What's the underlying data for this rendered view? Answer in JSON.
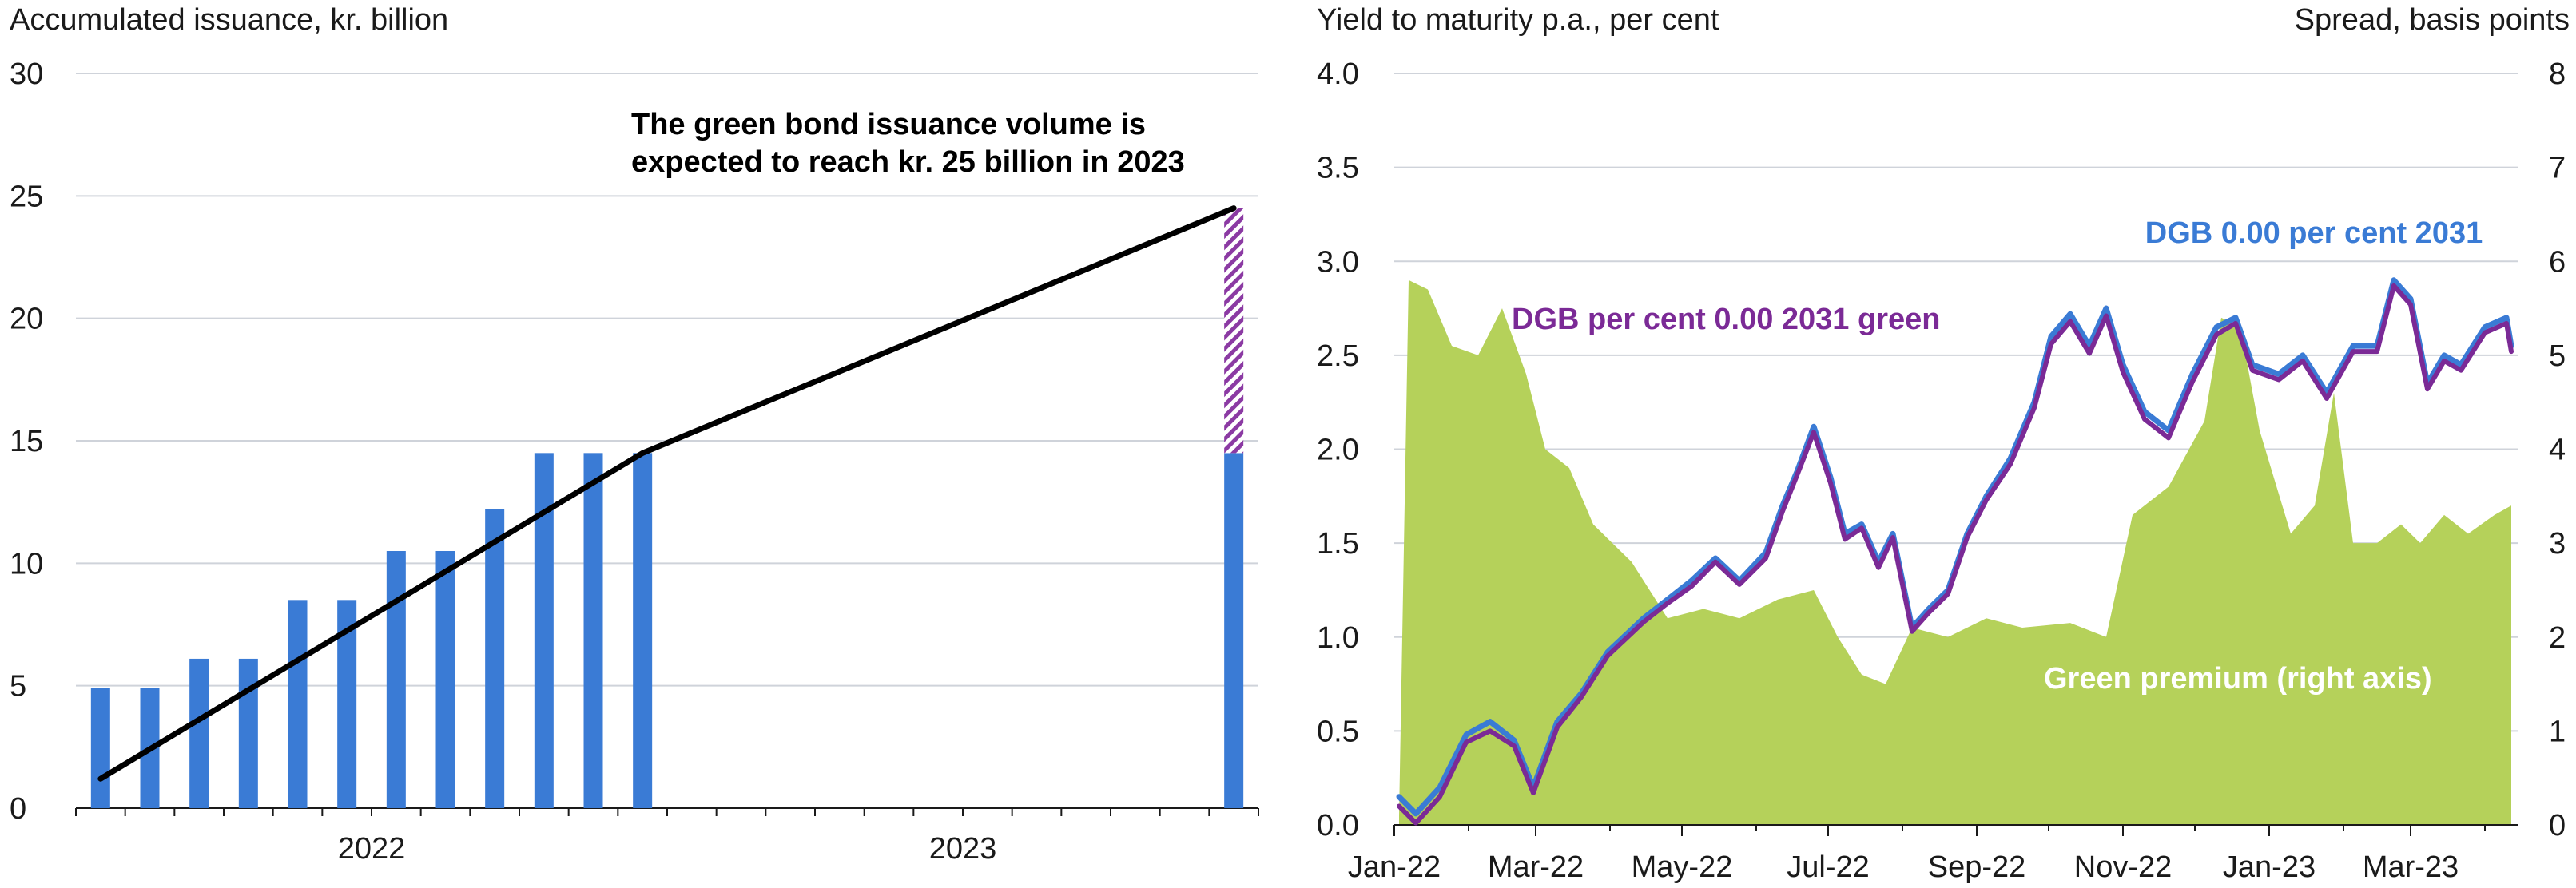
{
  "colors": {
    "bar": "#3a7bd5",
    "projection_hatch": "#8b3aa3",
    "trend_line": "#000000",
    "dgb_line": "#3a7bd5",
    "dgb_green_line": "#7b2a96",
    "green_premium_fill": "#b5d15a",
    "grid": "#cfd3da",
    "label_blue": "#3a7bd5",
    "label_purple": "#7b2a96",
    "label_white": "#ffffff"
  },
  "chart_data": [
    {
      "type": "bar",
      "title": "",
      "ylabel": "Accumulated issuance, kr. billion",
      "xlabel": "",
      "ylim": [
        0,
        30
      ],
      "yticks": [
        0,
        5,
        10,
        15,
        20,
        25,
        30
      ],
      "x_year_labels": [
        "2022",
        "2023"
      ],
      "categories": [
        "Jan-22",
        "Feb-22",
        "Mar-22",
        "Apr-22",
        "May-22",
        "Jun-22",
        "Jul-22",
        "Aug-22",
        "Sep-22",
        "Oct-22",
        "Nov-22",
        "Dec-22",
        "Dec-23"
      ],
      "values": [
        4.9,
        4.9,
        6.1,
        6.1,
        8.5,
        8.5,
        10.5,
        10.5,
        12.2,
        14.5,
        14.5,
        14.5,
        14.5
      ],
      "projection": {
        "category": "Dec-23",
        "from": 14.5,
        "to": 24.5
      },
      "trend_line": [
        {
          "x": "Jan-22",
          "y": 1.2
        },
        {
          "x": "Dec-22",
          "y": 14.5
        },
        {
          "x": "Dec-23",
          "y": 24.5
        }
      ],
      "annotation": "The green bond issuance volume is expected to reach kr. 25 billion in 2023"
    },
    {
      "type": "line",
      "title": "",
      "ylabel_left": "Yield to maturity p.a., per cent",
      "ylabel_right": "Spread, basis points",
      "ylim_left": [
        0,
        4
      ],
      "ylim_right": [
        0,
        8
      ],
      "yticks_left": [
        "0.0",
        "0.5",
        "1.0",
        "1.5",
        "2.0",
        "2.5",
        "3.0",
        "3.5",
        "4.0"
      ],
      "yticks_right": [
        "0",
        "1",
        "2",
        "3",
        "4",
        "5",
        "6",
        "7",
        "8"
      ],
      "x_tick_labels": [
        "Jan-22",
        "Mar-22",
        "May-22",
        "Jul-22",
        "Sep-22",
        "Nov-22",
        "Jan-23",
        "Mar-23"
      ],
      "x_range": [
        "2022-01-01",
        "2023-04-15"
      ],
      "series": [
        {
          "name": "DGB 0.00 per cent 2031",
          "axis": "left",
          "points": [
            [
              "2022-01-03",
              0.15
            ],
            [
              "2022-01-10",
              0.06
            ],
            [
              "2022-01-20",
              0.2
            ],
            [
              "2022-01-31",
              0.48
            ],
            [
              "2022-02-10",
              0.55
            ],
            [
              "2022-02-20",
              0.45
            ],
            [
              "2022-02-28",
              0.2
            ],
            [
              "2022-03-10",
              0.55
            ],
            [
              "2022-03-20",
              0.7
            ],
            [
              "2022-03-31",
              0.92
            ],
            [
              "2022-04-15",
              1.1
            ],
            [
              "2022-04-25",
              1.2
            ],
            [
              "2022-05-05",
              1.3
            ],
            [
              "2022-05-15",
              1.42
            ],
            [
              "2022-05-25",
              1.3
            ],
            [
              "2022-06-05",
              1.45
            ],
            [
              "2022-06-12",
              1.7
            ],
            [
              "2022-06-18",
              1.88
            ],
            [
              "2022-06-25",
              2.12
            ],
            [
              "2022-07-02",
              1.85
            ],
            [
              "2022-07-08",
              1.55
            ],
            [
              "2022-07-15",
              1.6
            ],
            [
              "2022-07-22",
              1.4
            ],
            [
              "2022-07-28",
              1.55
            ],
            [
              "2022-08-05",
              1.05
            ],
            [
              "2022-08-12",
              1.15
            ],
            [
              "2022-08-20",
              1.25
            ],
            [
              "2022-08-28",
              1.55
            ],
            [
              "2022-09-05",
              1.75
            ],
            [
              "2022-09-15",
              1.95
            ],
            [
              "2022-09-25",
              2.25
            ],
            [
              "2022-10-02",
              2.6
            ],
            [
              "2022-10-10",
              2.72
            ],
            [
              "2022-10-18",
              2.55
            ],
            [
              "2022-10-25",
              2.75
            ],
            [
              "2022-11-01",
              2.45
            ],
            [
              "2022-11-10",
              2.2
            ],
            [
              "2022-11-20",
              2.1
            ],
            [
              "2022-11-30",
              2.4
            ],
            [
              "2022-12-10",
              2.65
            ],
            [
              "2022-12-18",
              2.7
            ],
            [
              "2022-12-25",
              2.45
            ],
            [
              "2023-01-05",
              2.4
            ],
            [
              "2023-01-15",
              2.5
            ],
            [
              "2023-01-25",
              2.3
            ],
            [
              "2023-02-05",
              2.55
            ],
            [
              "2023-02-15",
              2.55
            ],
            [
              "2023-02-22",
              2.9
            ],
            [
              "2023-03-01",
              2.8
            ],
            [
              "2023-03-08",
              2.35
            ],
            [
              "2023-03-15",
              2.5
            ],
            [
              "2023-03-22",
              2.45
            ],
            [
              "2023-04-01",
              2.65
            ],
            [
              "2023-04-10",
              2.7
            ],
            [
              "2023-04-12",
              2.55
            ]
          ]
        },
        {
          "name": "DGB per cent 0.00 2031 green",
          "axis": "left",
          "points": [
            [
              "2022-01-03",
              0.1
            ],
            [
              "2022-01-10",
              0.01
            ],
            [
              "2022-01-20",
              0.15
            ],
            [
              "2022-01-31",
              0.44
            ],
            [
              "2022-02-10",
              0.5
            ],
            [
              "2022-02-20",
              0.42
            ],
            [
              "2022-02-28",
              0.17
            ],
            [
              "2022-03-10",
              0.52
            ],
            [
              "2022-03-20",
              0.68
            ],
            [
              "2022-03-31",
              0.9
            ],
            [
              "2022-04-15",
              1.08
            ],
            [
              "2022-04-25",
              1.18
            ],
            [
              "2022-05-05",
              1.27
            ],
            [
              "2022-05-15",
              1.4
            ],
            [
              "2022-05-25",
              1.28
            ],
            [
              "2022-06-05",
              1.42
            ],
            [
              "2022-06-12",
              1.67
            ],
            [
              "2022-06-18",
              1.86
            ],
            [
              "2022-06-25",
              2.09
            ],
            [
              "2022-07-02",
              1.82
            ],
            [
              "2022-07-08",
              1.52
            ],
            [
              "2022-07-15",
              1.58
            ],
            [
              "2022-07-22",
              1.37
            ],
            [
              "2022-07-28",
              1.53
            ],
            [
              "2022-08-05",
              1.03
            ],
            [
              "2022-08-12",
              1.13
            ],
            [
              "2022-08-20",
              1.23
            ],
            [
              "2022-08-28",
              1.53
            ],
            [
              "2022-09-05",
              1.73
            ],
            [
              "2022-09-15",
              1.92
            ],
            [
              "2022-09-25",
              2.22
            ],
            [
              "2022-10-02",
              2.56
            ],
            [
              "2022-10-10",
              2.68
            ],
            [
              "2022-10-18",
              2.51
            ],
            [
              "2022-10-25",
              2.71
            ],
            [
              "2022-11-01",
              2.41
            ],
            [
              "2022-11-10",
              2.16
            ],
            [
              "2022-11-20",
              2.06
            ],
            [
              "2022-11-30",
              2.36
            ],
            [
              "2022-12-10",
              2.61
            ],
            [
              "2022-12-18",
              2.67
            ],
            [
              "2022-12-25",
              2.42
            ],
            [
              "2023-01-05",
              2.37
            ],
            [
              "2023-01-15",
              2.47
            ],
            [
              "2023-01-25",
              2.27
            ],
            [
              "2023-02-05",
              2.52
            ],
            [
              "2023-02-15",
              2.52
            ],
            [
              "2023-02-22",
              2.87
            ],
            [
              "2023-03-01",
              2.77
            ],
            [
              "2023-03-08",
              2.32
            ],
            [
              "2023-03-15",
              2.47
            ],
            [
              "2023-03-22",
              2.42
            ],
            [
              "2023-04-01",
              2.62
            ],
            [
              "2023-04-10",
              2.67
            ],
            [
              "2023-04-12",
              2.52
            ]
          ]
        },
        {
          "name": "Green premium (right axis)",
          "axis": "right",
          "type": "area",
          "points": [
            [
              "2022-01-03",
              0.1
            ],
            [
              "2022-01-07",
              5.8
            ],
            [
              "2022-01-15",
              5.7
            ],
            [
              "2022-01-25",
              5.1
            ],
            [
              "2022-02-05",
              5.0
            ],
            [
              "2022-02-15",
              5.5
            ],
            [
              "2022-02-25",
              4.8
            ],
            [
              "2022-03-05",
              4.0
            ],
            [
              "2022-03-15",
              3.8
            ],
            [
              "2022-03-25",
              3.2
            ],
            [
              "2022-04-10",
              2.8
            ],
            [
              "2022-04-25",
              2.2
            ],
            [
              "2022-05-10",
              2.3
            ],
            [
              "2022-05-25",
              2.2
            ],
            [
              "2022-06-10",
              2.4
            ],
            [
              "2022-06-25",
              2.5
            ],
            [
              "2022-07-05",
              2.0
            ],
            [
              "2022-07-15",
              1.6
            ],
            [
              "2022-07-25",
              1.5
            ],
            [
              "2022-08-05",
              2.1
            ],
            [
              "2022-08-20",
              2.0
            ],
            [
              "2022-09-05",
              2.2
            ],
            [
              "2022-09-20",
              2.1
            ],
            [
              "2022-10-10",
              2.15
            ],
            [
              "2022-10-25",
              2.0
            ],
            [
              "2022-11-05",
              3.3
            ],
            [
              "2022-11-20",
              3.6
            ],
            [
              "2022-12-05",
              4.3
            ],
            [
              "2022-12-12",
              5.4
            ],
            [
              "2022-12-20",
              5.3
            ],
            [
              "2022-12-28",
              4.2
            ],
            [
              "2023-01-10",
              3.1
            ],
            [
              "2023-01-20",
              3.4
            ],
            [
              "2023-01-28",
              4.6
            ],
            [
              "2023-02-05",
              3.0
            ],
            [
              "2023-02-15",
              3.0
            ],
            [
              "2023-02-25",
              3.2
            ],
            [
              "2023-03-05",
              3.0
            ],
            [
              "2023-03-15",
              3.3
            ],
            [
              "2023-03-25",
              3.1
            ],
            [
              "2023-04-05",
              3.3
            ],
            [
              "2023-04-12",
              3.4
            ]
          ]
        }
      ],
      "labels": {
        "dgb": "DGB 0.00 per cent 2031",
        "dgb_green": "DGB per cent 0.00 2031 green",
        "premium": "Green premium (right axis)"
      }
    }
  ]
}
